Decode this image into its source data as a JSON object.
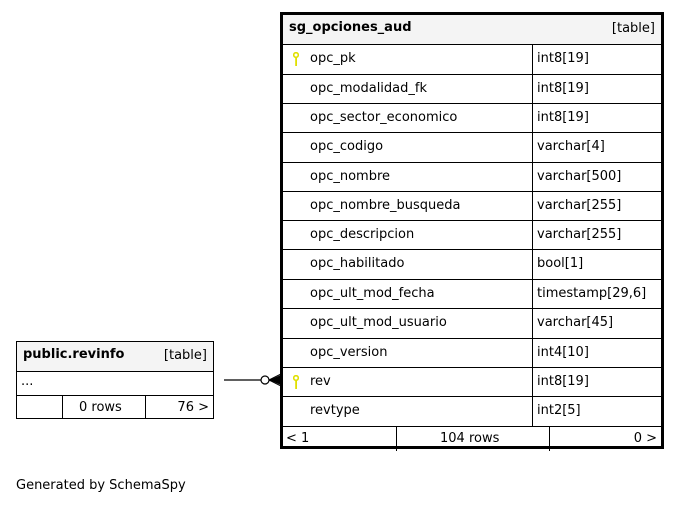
{
  "main_table": {
    "name": "sg_opciones_aud",
    "kind": "[table]",
    "columns": [
      {
        "name": "opc_pk",
        "type": "int8[19]",
        "key": true
      },
      {
        "name": "opc_modalidad_fk",
        "type": "int8[19]",
        "key": false
      },
      {
        "name": "opc_sector_economico",
        "type": "int8[19]",
        "key": false
      },
      {
        "name": "opc_codigo",
        "type": "varchar[4]",
        "key": false
      },
      {
        "name": "opc_nombre",
        "type": "varchar[500]",
        "key": false
      },
      {
        "name": "opc_nombre_busqueda",
        "type": "varchar[255]",
        "key": false
      },
      {
        "name": "opc_descripcion",
        "type": "varchar[255]",
        "key": false
      },
      {
        "name": "opc_habilitado",
        "type": "bool[1]",
        "key": false
      },
      {
        "name": "opc_ult_mod_fecha",
        "type": "timestamp[29,6]",
        "key": false
      },
      {
        "name": "opc_ult_mod_usuario",
        "type": "varchar[45]",
        "key": false
      },
      {
        "name": "opc_version",
        "type": "int4[10]",
        "key": false
      },
      {
        "name": "rev",
        "type": "int8[19]",
        "key": true
      },
      {
        "name": "revtype",
        "type": "int2[5]",
        "key": false
      }
    ],
    "footer": {
      "parents": "< 1",
      "rows": "104 rows",
      "children": "0 >"
    }
  },
  "rev_table": {
    "name": "public.revinfo",
    "kind": "[table]",
    "ellipsis": "...",
    "footer": {
      "parents": "",
      "rows": "0 rows",
      "children": "76 >"
    }
  },
  "key_color": "#e0e000",
  "footer_text": "Generated by SchemaSpy"
}
